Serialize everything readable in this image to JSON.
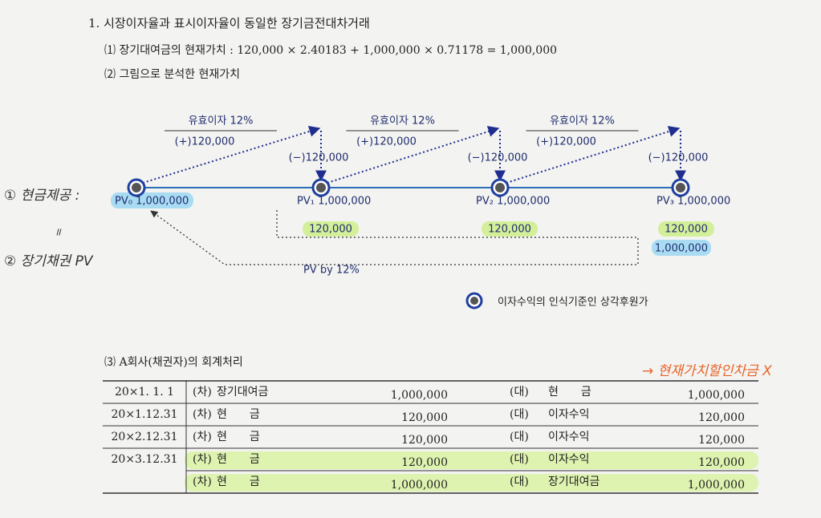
{
  "section": {
    "heading": "1. 시장이자율과 표시이자율이 동일한 장기금전대차거래",
    "item1": "⑴ 장기대여금의 현재가치 : 120,000 × 2.40183 + 1,000,000 × 0.71178 = 1,000,000",
    "item2": "⑵ 그림으로 분석한 현재가치"
  },
  "diagram": {
    "interest_labels": [
      "유효이자 12%",
      "유효이자 12%",
      "유효이자 12%"
    ],
    "plus_labels": [
      "(+)120,000",
      "(+)120,000",
      "(+)120,000"
    ],
    "minus_labels": [
      "(−)120,000",
      "(−)120,000",
      "(−)120,000"
    ],
    "nodes": [
      "PV₀ 1,000,000",
      "PV₁ 1,000,000",
      "PV₂ 1,000,000",
      "PV₃ 1,000,000"
    ],
    "cash_flows": [
      "120,000",
      "120,000",
      "120,000"
    ],
    "principal": "1,000,000",
    "discount_label": "PV by 12%",
    "legend": "이자수익의 인식기준인 상각후원가"
  },
  "handwritten": {
    "note1": "① 현금제공 :",
    "equals": "॥",
    "note2": "② 장기채권 PV",
    "note3": "→ 현재가치할인차금 X"
  },
  "table": {
    "title": "⑶ A회사(채권자)의 회계처리",
    "rows": [
      [
        "20×1. 1. 1",
        "(차)",
        "장기대여금",
        "1,000,000",
        "(대)",
        "현　　금",
        "1,000,000"
      ],
      [
        "20×1.12.31",
        "(차)",
        "현　　금",
        "120,000",
        "(대)",
        "이자수익",
        "120,000"
      ],
      [
        "20×2.12.31",
        "(차)",
        "현　　금",
        "120,000",
        "(대)",
        "이자수익",
        "120,000"
      ],
      [
        "20×3.12.31",
        "(차)",
        "현　　금",
        "120,000",
        "(대)",
        "이자수익",
        "120,000"
      ],
      [
        "(차)",
        "현　　금",
        "1,000,000",
        "(대)",
        "장기대여금",
        "1,000,000"
      ]
    ]
  }
}
